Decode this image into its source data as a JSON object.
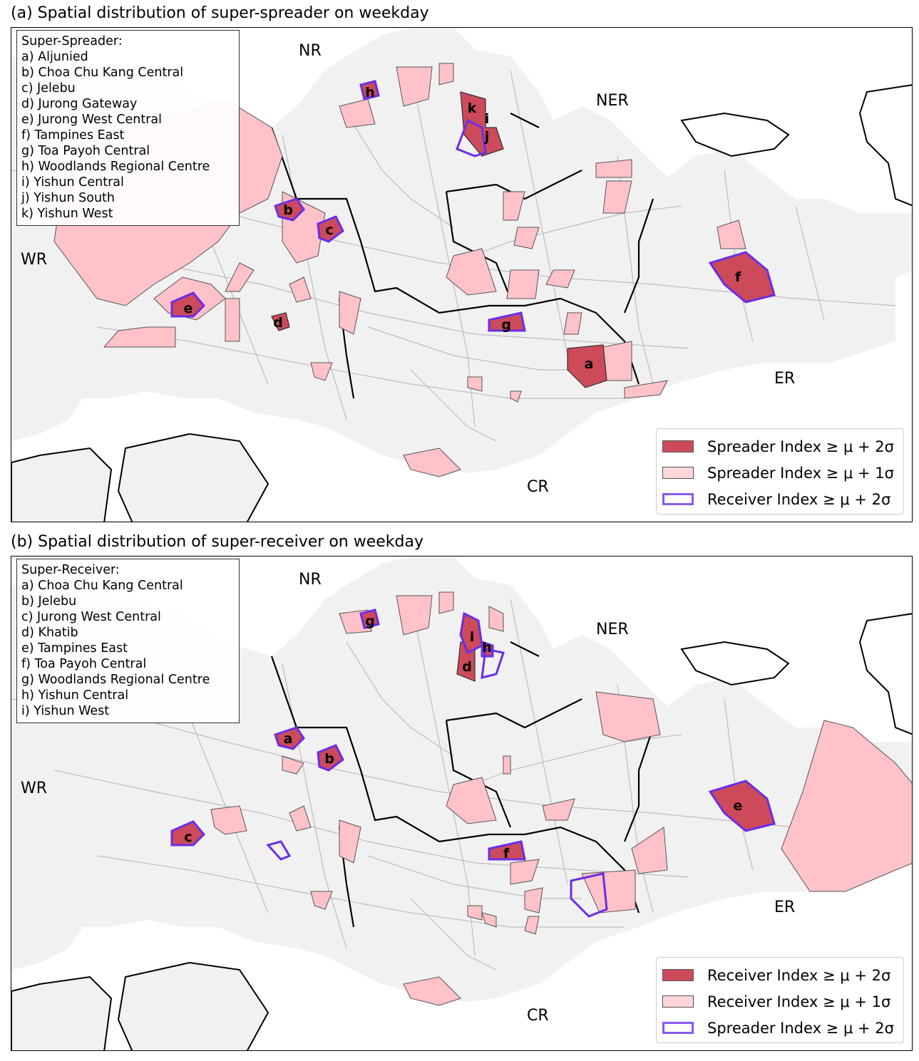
{
  "panel_a": {
    "title": "(a) Spatial distribution of super-spreader on weekday",
    "box_title": "Super-Spreader:",
    "items": [
      "a) Aljunied",
      "b) Choa Chu Kang Central",
      "c) Jelebu",
      "d) Jurong Gateway",
      "e) Jurong West Central",
      "f) Tampines East",
      "g) Toa Payoh Central",
      "h) Woodlands Regional Centre",
      "i) Yishun Central",
      "j) Yishun South",
      "k) Yishun West"
    ],
    "regions": [
      "NR",
      "NER",
      "WR",
      "ER",
      "CR"
    ],
    "legend": [
      "Spreader Index ≥ μ + 2σ",
      "Spreader Index ≥ μ + 1σ",
      "Receiver Index ≥ μ + 2σ"
    ],
    "markers": [
      "a",
      "b",
      "c",
      "d",
      "e",
      "f",
      "g",
      "h",
      "i",
      "j",
      "k"
    ]
  },
  "panel_b": {
    "title": "(b) Spatial distribution of super-receiver on weekday",
    "box_title": "Super-Receiver:",
    "items": [
      "a) Choa Chu Kang Central",
      "b) Jelebu",
      "c) Jurong West Central",
      "d) Khatib",
      "e) Tampines East",
      "f) Toa Payoh Central",
      "g) Woodlands Regional Centre",
      "h) Yishun Central",
      "i) Yishun West"
    ],
    "regions": [
      "NR",
      "NER",
      "WR",
      "ER",
      "CR"
    ],
    "legend": [
      "Receiver Index ≥ μ + 2σ",
      "Receiver Index ≥ μ + 1σ",
      "Spreader Index ≥ μ + 2σ"
    ],
    "markers": [
      "a",
      "b",
      "c",
      "d",
      "e",
      "f",
      "g",
      "h",
      "i"
    ]
  },
  "colors": {
    "high": "#cc4a5a",
    "medium": "#ffc2c8",
    "outline": "#6a2ee8",
    "land": "#f1f1f1",
    "boundary": "#000000",
    "subzone_lines": "#bdbdbd"
  }
}
